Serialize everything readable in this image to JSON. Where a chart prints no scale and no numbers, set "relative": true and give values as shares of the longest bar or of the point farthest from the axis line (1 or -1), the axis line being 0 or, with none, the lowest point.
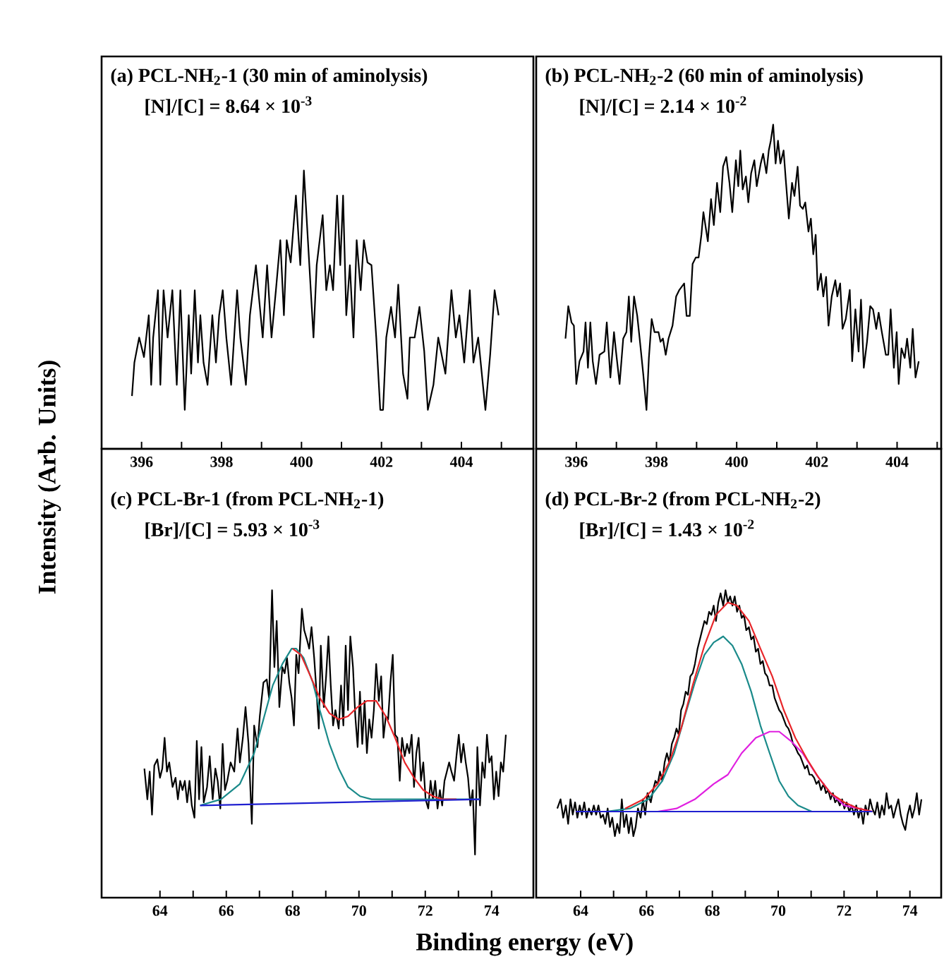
{
  "chart_data": [
    {
      "type": "line",
      "relative": true,
      "title": "(a) PCL-NH$_{2}$-1 (30 min of aminolysis)",
      "subtitle": "[N]/[C] = 8.64 × 10$^{-3}$",
      "ylabel": "Intensity (Arb. Units)",
      "xlim": [
        395.0,
        405.8
      ],
      "xticks": [
        396,
        {
          "value": 397,
          "label": null
        },
        398,
        {
          "value": 399,
          "label": null
        },
        400,
        {
          "value": 401,
          "label": null
        },
        402,
        {
          "value": 403,
          "label": null
        },
        404,
        {
          "value": 405,
          "label": null
        }
      ],
      "tick_labels": "x",
      "series": [
        {
          "color": "#000000",
          "x": [
            395.76,
            395.82,
            395.94,
            396.06,
            396.18,
            396.24,
            396.29,
            396.41,
            396.47,
            396.55,
            396.65,
            396.77,
            396.88,
            396.97,
            397.08,
            397.18,
            397.24,
            397.33,
            397.41,
            397.47,
            397.55,
            397.65,
            397.77,
            397.86,
            397.94,
            398.03,
            398.12,
            398.24,
            398.39,
            398.47,
            398.61,
            398.71,
            398.86,
            399.03,
            399.14,
            399.25,
            399.36,
            399.47,
            399.56,
            399.63,
            399.73,
            399.86,
            399.97,
            400.06,
            400.16,
            400.3,
            400.38,
            400.53,
            400.62,
            400.71,
            400.79,
            400.89,
            400.97,
            401.04,
            401.12,
            401.21,
            401.3,
            401.38,
            401.48,
            401.56,
            401.65,
            401.75,
            401.87,
            401.97,
            402.04,
            402.12,
            402.24,
            402.34,
            402.42,
            402.54,
            402.65,
            402.71,
            402.83,
            402.95,
            403.07,
            403.16,
            403.3,
            403.42,
            403.6,
            403.75,
            403.86,
            403.95,
            404.07,
            404.21,
            404.3,
            404.42,
            404.6,
            404.72,
            404.83,
            404.93
          ],
          "values": [
            0.19,
            0.31,
            0.4,
            0.33,
            0.48,
            0.23,
            0.4,
            0.57,
            0.23,
            0.57,
            0.4,
            0.57,
            0.23,
            0.57,
            0.14,
            0.48,
            0.27,
            0.57,
            0.31,
            0.48,
            0.31,
            0.23,
            0.48,
            0.31,
            0.48,
            0.57,
            0.4,
            0.23,
            0.57,
            0.4,
            0.23,
            0.48,
            0.66,
            0.4,
            0.66,
            0.4,
            0.57,
            0.75,
            0.48,
            0.75,
            0.67,
            0.91,
            0.66,
            1.0,
            0.75,
            0.4,
            0.66,
            0.84,
            0.57,
            0.66,
            0.57,
            0.91,
            0.66,
            0.91,
            0.48,
            0.66,
            0.4,
            0.75,
            0.57,
            0.75,
            0.67,
            0.66,
            0.4,
            0.14,
            0.14,
            0.4,
            0.51,
            0.4,
            0.59,
            0.27,
            0.18,
            0.4,
            0.4,
            0.51,
            0.35,
            0.14,
            0.23,
            0.4,
            0.27,
            0.57,
            0.4,
            0.48,
            0.31,
            0.57,
            0.31,
            0.4,
            0.14,
            0.34,
            0.57,
            0.48
          ]
        }
      ]
    },
    {
      "type": "line",
      "relative": true,
      "title": "(b) PCL-NH$_{2}$-2 (60 min of aminolysis)",
      "subtitle": "[N]/[C] = 2.14 × 10$^{-2}$",
      "xlim": [
        395.0,
        405.1
      ],
      "xticks": [
        396,
        {
          "value": 397,
          "label": null
        },
        398,
        {
          "value": 399,
          "label": null
        },
        400,
        {
          "value": 401,
          "label": null
        },
        402,
        {
          "value": 403,
          "label": null
        },
        404,
        {
          "value": 405,
          "label": null
        }
      ],
      "tick_labels": "x",
      "series": [
        {
          "color": "#000000",
          "x": [
            395.73,
            395.8,
            395.88,
            395.94,
            396.0,
            396.08,
            396.18,
            396.23,
            396.29,
            396.35,
            396.41,
            396.49,
            396.58,
            396.7,
            396.76,
            396.85,
            396.94,
            396.99,
            397.08,
            397.17,
            397.25,
            397.31,
            397.37,
            397.44,
            397.52,
            397.58,
            397.67,
            397.75,
            397.81,
            397.88,
            397.95,
            398.05,
            398.1,
            398.16,
            398.23,
            398.3,
            398.4,
            398.49,
            398.57,
            398.69,
            398.75,
            398.83,
            398.9,
            398.98,
            399.05,
            399.12,
            399.17,
            399.28,
            399.36,
            399.43,
            399.51,
            399.59,
            399.66,
            399.74,
            399.82,
            399.89,
            399.98,
            400.04,
            400.09,
            400.15,
            400.23,
            400.29,
            400.36,
            400.44,
            400.5,
            400.6,
            400.66,
            400.74,
            400.8,
            400.85,
            400.91,
            400.97,
            401.03,
            401.09,
            401.17,
            401.23,
            401.3,
            401.38,
            401.44,
            401.52,
            401.58,
            401.65,
            401.71,
            401.79,
            401.85,
            401.91,
            401.97,
            402.02,
            402.1,
            402.16,
            402.23,
            402.29,
            402.37,
            402.46,
            402.51,
            402.58,
            402.64,
            402.72,
            402.82,
            402.88,
            402.96,
            403.04,
            403.1,
            403.17,
            403.25,
            403.33,
            403.4,
            403.48,
            403.54,
            403.62,
            403.72,
            403.78,
            403.84,
            403.92,
            403.99,
            404.04,
            404.11,
            404.19,
            404.25,
            404.33,
            404.39,
            404.46,
            404.54
          ],
          "values": [
            0.34,
            0.44,
            0.39,
            0.38,
            0.2,
            0.27,
            0.3,
            0.39,
            0.25,
            0.39,
            0.27,
            0.2,
            0.29,
            0.3,
            0.39,
            0.22,
            0.36,
            0.3,
            0.2,
            0.34,
            0.36,
            0.47,
            0.33,
            0.47,
            0.41,
            0.34,
            0.23,
            0.12,
            0.28,
            0.4,
            0.36,
            0.36,
            0.33,
            0.34,
            0.29,
            0.34,
            0.38,
            0.47,
            0.49,
            0.51,
            0.41,
            0.41,
            0.57,
            0.59,
            0.59,
            0.66,
            0.73,
            0.64,
            0.77,
            0.69,
            0.82,
            0.73,
            0.87,
            0.9,
            0.82,
            0.73,
            0.89,
            0.81,
            0.92,
            0.8,
            0.84,
            0.76,
            0.85,
            0.89,
            0.81,
            0.88,
            0.91,
            0.85,
            0.92,
            0.95,
            1.0,
            0.88,
            0.95,
            0.88,
            0.92,
            0.82,
            0.71,
            0.82,
            0.78,
            0.87,
            0.75,
            0.74,
            0.76,
            0.67,
            0.71,
            0.6,
            0.66,
            0.49,
            0.54,
            0.47,
            0.53,
            0.38,
            0.47,
            0.52,
            0.47,
            0.51,
            0.37,
            0.4,
            0.49,
            0.27,
            0.43,
            0.3,
            0.46,
            0.25,
            0.33,
            0.44,
            0.43,
            0.37,
            0.42,
            0.36,
            0.29,
            0.29,
            0.43,
            0.25,
            0.36,
            0.2,
            0.31,
            0.28,
            0.34,
            0.25,
            0.37,
            0.22,
            0.27
          ]
        }
      ]
    },
    {
      "type": "line",
      "relative": true,
      "title": "(c) PCL-Br-1 (from PCL-NH$_{2}$-1)",
      "subtitle": "[Br]/[C] = 5.93 × 10$^{-3}$",
      "xlabel": "Binding energy (eV)",
      "xlim": [
        62.24,
        75.26
      ],
      "xticks": [
        64,
        {
          "value": 65,
          "label": null
        },
        66,
        {
          "value": 67,
          "label": null
        },
        68,
        {
          "value": 69,
          "label": null
        },
        70,
        {
          "value": 71,
          "label": null
        },
        72,
        {
          "value": 73,
          "label": null
        },
        74
      ],
      "tick_labels": "x",
      "series": [
        {
          "color": "#000000",
          "x": [
            63.53,
            63.62,
            63.69,
            63.76,
            63.83,
            63.92,
            64.0,
            64.07,
            64.14,
            64.21,
            64.28,
            64.38,
            64.47,
            64.54,
            64.61,
            64.68,
            64.75,
            64.82,
            64.89,
            64.96,
            65.04,
            65.11,
            65.18,
            65.25,
            65.32,
            65.42,
            65.5,
            65.59,
            65.67,
            65.74,
            65.82,
            65.89,
            65.96,
            66.03,
            66.13,
            66.24,
            66.34,
            66.41,
            66.5,
            66.58,
            66.67,
            66.77,
            66.84,
            66.94,
            67.01,
            67.12,
            67.22,
            67.29,
            67.38,
            67.45,
            67.52,
            67.6,
            67.69,
            67.76,
            67.83,
            67.9,
            67.97,
            68.04,
            68.11,
            68.18,
            68.28,
            68.35,
            68.43,
            68.5,
            68.57,
            68.65,
            68.72,
            68.79,
            68.85,
            68.94,
            69.01,
            69.08,
            69.15,
            69.22,
            69.29,
            69.39,
            69.46,
            69.53,
            69.6,
            69.67,
            69.74,
            69.82,
            69.89,
            69.96,
            70.03,
            70.1,
            70.17,
            70.24,
            70.31,
            70.38,
            70.45,
            70.52,
            70.6,
            70.67,
            70.74,
            70.81,
            70.88,
            70.95,
            71.02,
            71.09,
            71.16,
            71.23,
            71.3,
            71.38,
            71.45,
            71.52,
            71.59,
            71.66,
            71.73,
            71.8,
            71.87,
            71.94,
            72.01,
            72.09,
            72.16,
            72.23,
            72.3,
            72.37,
            72.44,
            72.51,
            72.58,
            72.65,
            72.72,
            72.79,
            72.87,
            72.94,
            73.01,
            73.08,
            73.15,
            73.22,
            73.29,
            73.36,
            73.43,
            73.5,
            73.57,
            73.65,
            73.72,
            73.79,
            73.86,
            73.93,
            74.0,
            74.07,
            74.14,
            74.21,
            74.28,
            74.35,
            74.43
          ],
          "values": [
            0.42,
            0.32,
            0.41,
            0.27,
            0.43,
            0.45,
            0.39,
            0.42,
            0.52,
            0.41,
            0.44,
            0.36,
            0.39,
            0.32,
            0.38,
            0.35,
            0.38,
            0.31,
            0.38,
            0.3,
            0.26,
            0.51,
            0.32,
            0.49,
            0.31,
            0.36,
            0.46,
            0.32,
            0.42,
            0.38,
            0.29,
            0.5,
            0.35,
            0.38,
            0.44,
            0.41,
            0.55,
            0.44,
            0.52,
            0.62,
            0.5,
            0.24,
            0.56,
            0.49,
            0.59,
            0.7,
            0.71,
            0.65,
            1.0,
            0.75,
            0.9,
            0.62,
            0.75,
            0.73,
            0.78,
            0.7,
            0.65,
            0.56,
            0.79,
            0.73,
            0.94,
            0.87,
            0.84,
            0.81,
            0.88,
            0.78,
            0.67,
            0.55,
            0.82,
            0.62,
            0.72,
            0.85,
            0.69,
            0.56,
            0.61,
            0.55,
            0.69,
            0.56,
            0.82,
            0.61,
            0.85,
            0.75,
            0.59,
            0.49,
            0.67,
            0.5,
            0.64,
            0.47,
            0.58,
            0.52,
            0.61,
            0.76,
            0.64,
            0.72,
            0.52,
            0.59,
            0.58,
            0.7,
            0.79,
            0.53,
            0.52,
            0.38,
            0.52,
            0.46,
            0.5,
            0.47,
            0.53,
            0.36,
            0.47,
            0.52,
            0.38,
            0.44,
            0.32,
            0.29,
            0.38,
            0.32,
            0.38,
            0.29,
            0.35,
            0.3,
            0.38,
            0.41,
            0.44,
            0.41,
            0.38,
            0.46,
            0.53,
            0.44,
            0.5,
            0.44,
            0.39,
            0.3,
            0.35,
            0.14,
            0.49,
            0.3,
            0.44,
            0.39,
            0.53,
            0.44,
            0.46,
            0.32,
            0.41,
            0.33,
            0.44,
            0.41,
            0.53
          ]
        },
        {
          "color": "#1a8a8a",
          "x": [
            65.21,
            65.84,
            66.41,
            66.84,
            67.12,
            67.4,
            67.69,
            67.97,
            68.11,
            68.33,
            68.61,
            68.82,
            69.11,
            69.39,
            69.67,
            70.03,
            70.38,
            70.95,
            72.09,
            73.65
          ],
          "values": [
            0.3,
            0.32,
            0.37,
            0.47,
            0.58,
            0.69,
            0.76,
            0.81,
            0.81,
            0.78,
            0.7,
            0.61,
            0.5,
            0.42,
            0.36,
            0.33,
            0.32,
            0.32,
            0.32,
            0.32
          ]
        },
        {
          "color": "#e8262a",
          "x": [
            68.0,
            68.25,
            68.54,
            68.82,
            69.11,
            69.39,
            69.67,
            69.96,
            70.24,
            70.52,
            70.81,
            71.09,
            71.38,
            71.66,
            71.94,
            72.23,
            72.51,
            72.94
          ],
          "values": [
            0.81,
            0.79,
            0.72,
            0.65,
            0.6,
            0.58,
            0.59,
            0.62,
            0.64,
            0.64,
            0.59,
            0.52,
            0.44,
            0.39,
            0.35,
            0.33,
            0.32,
            0.32
          ]
        },
        {
          "color": "#2020d0",
          "x": [
            65.21,
            73.65
          ],
          "values": [
            0.3,
            0.32
          ]
        }
      ]
    },
    {
      "type": "line",
      "relative": true,
      "title": "(d) PCL-Br-2 (from PCL-NH$_{2}$-2)",
      "subtitle": "[Br]/[C] = 1.43 × 10$^{-2}$",
      "xlim": [
        62.65,
        74.95
      ],
      "xticks": [
        64,
        {
          "value": 65,
          "label": null
        },
        66,
        {
          "value": 67,
          "label": null
        },
        68,
        {
          "value": 69,
          "label": null
        },
        70,
        {
          "value": 71,
          "label": null
        },
        72,
        {
          "value": 73,
          "label": null
        },
        74
      ],
      "tick_labels": "x",
      "series": [
        {
          "color": "#000000",
          "x": [
            63.29,
            63.39,
            63.47,
            63.55,
            63.62,
            63.69,
            63.76,
            63.83,
            63.9,
            63.97,
            64.04,
            64.11,
            64.18,
            64.25,
            64.33,
            64.4,
            64.47,
            64.54,
            64.61,
            64.68,
            64.75,
            64.82,
            64.89,
            64.96,
            65.04,
            65.11,
            65.18,
            65.25,
            65.32,
            65.39,
            65.46,
            65.53,
            65.6,
            65.67,
            65.74,
            65.82,
            65.89,
            65.96,
            66.03,
            66.13,
            66.2,
            66.27,
            66.34,
            66.41,
            66.48,
            66.55,
            66.62,
            66.69,
            66.77,
            66.84,
            66.91,
            66.98,
            67.05,
            67.12,
            67.19,
            67.26,
            67.33,
            67.4,
            67.47,
            67.55,
            67.62,
            67.69,
            67.76,
            67.83,
            67.9,
            67.97,
            68.04,
            68.11,
            68.18,
            68.25,
            68.33,
            68.4,
            68.47,
            68.54,
            68.61,
            68.68,
            68.75,
            68.82,
            68.89,
            68.96,
            69.03,
            69.11,
            69.18,
            69.25,
            69.32,
            69.39,
            69.46,
            69.53,
            69.6,
            69.67,
            69.74,
            69.82,
            69.89,
            69.96,
            70.03,
            70.1,
            70.17,
            70.24,
            70.31,
            70.38,
            70.45,
            70.52,
            70.6,
            70.67,
            70.74,
            70.81,
            70.88,
            70.95,
            71.02,
            71.09,
            71.16,
            71.23,
            71.3,
            71.38,
            71.45,
            71.52,
            71.59,
            71.66,
            71.73,
            71.8,
            71.87,
            71.94,
            72.01,
            72.08,
            72.16,
            72.23,
            72.3,
            72.37,
            72.44,
            72.51,
            72.58,
            72.65,
            72.72,
            72.79,
            72.86,
            72.94,
            73.01,
            73.08,
            73.15,
            73.22,
            73.29,
            73.36,
            73.43,
            73.5,
            73.57,
            73.65,
            73.72,
            73.79,
            73.86,
            73.93,
            74.0,
            74.07,
            74.14,
            74.21,
            74.28,
            74.35
          ],
          "values": [
            0.29,
            0.32,
            0.26,
            0.3,
            0.24,
            0.32,
            0.27,
            0.31,
            0.26,
            0.3,
            0.27,
            0.31,
            0.26,
            0.29,
            0.27,
            0.3,
            0.27,
            0.3,
            0.26,
            0.27,
            0.24,
            0.29,
            0.23,
            0.26,
            0.2,
            0.24,
            0.21,
            0.32,
            0.23,
            0.27,
            0.21,
            0.26,
            0.2,
            0.23,
            0.29,
            0.26,
            0.32,
            0.27,
            0.34,
            0.31,
            0.35,
            0.38,
            0.37,
            0.41,
            0.38,
            0.44,
            0.47,
            0.44,
            0.5,
            0.52,
            0.55,
            0.53,
            0.61,
            0.63,
            0.67,
            0.66,
            0.72,
            0.73,
            0.76,
            0.81,
            0.84,
            0.87,
            0.9,
            0.89,
            0.93,
            0.92,
            0.95,
            0.9,
            0.96,
            0.99,
            0.95,
            1.0,
            0.96,
            0.98,
            0.95,
            0.98,
            0.93,
            0.95,
            0.91,
            0.92,
            0.87,
            0.88,
            0.84,
            0.85,
            0.8,
            0.81,
            0.76,
            0.77,
            0.73,
            0.72,
            0.69,
            0.69,
            0.65,
            0.63,
            0.61,
            0.6,
            0.58,
            0.56,
            0.55,
            0.53,
            0.5,
            0.49,
            0.47,
            0.46,
            0.44,
            0.42,
            0.43,
            0.4,
            0.4,
            0.39,
            0.37,
            0.38,
            0.35,
            0.37,
            0.34,
            0.35,
            0.32,
            0.34,
            0.31,
            0.32,
            0.3,
            0.32,
            0.29,
            0.31,
            0.28,
            0.3,
            0.27,
            0.3,
            0.26,
            0.29,
            0.24,
            0.3,
            0.27,
            0.32,
            0.29,
            0.27,
            0.31,
            0.26,
            0.3,
            0.27,
            0.34,
            0.29,
            0.3,
            0.26,
            0.29,
            0.32,
            0.27,
            0.24,
            0.22,
            0.27,
            0.3,
            0.26,
            0.29,
            0.34,
            0.27,
            0.32
          ]
        },
        {
          "color": "#1a8a8a",
          "x": [
            63.86,
            64.78,
            65.49,
            66.06,
            66.48,
            66.84,
            67.19,
            67.47,
            67.76,
            68.04,
            68.33,
            68.61,
            68.89,
            69.18,
            69.46,
            69.74,
            70.03,
            70.31,
            70.6,
            71.02,
            71.87,
            72.86
          ],
          "values": [
            0.28,
            0.28,
            0.29,
            0.32,
            0.38,
            0.47,
            0.6,
            0.7,
            0.79,
            0.83,
            0.85,
            0.82,
            0.76,
            0.67,
            0.56,
            0.47,
            0.38,
            0.33,
            0.3,
            0.28,
            0.28,
            0.28
          ]
        },
        {
          "color": "#e020e0",
          "x": [
            63.86,
            65.49,
            66.34,
            66.91,
            67.47,
            68.04,
            68.47,
            68.89,
            69.32,
            69.74,
            70.03,
            70.38,
            70.74,
            71.16,
            71.59,
            72.01,
            72.44,
            72.86
          ],
          "values": [
            0.28,
            0.28,
            0.28,
            0.29,
            0.32,
            0.37,
            0.4,
            0.47,
            0.52,
            0.54,
            0.54,
            0.51,
            0.47,
            0.4,
            0.34,
            0.3,
            0.29,
            0.28
          ]
        },
        {
          "color": "#e8262a",
          "x": [
            65.35,
            65.91,
            66.34,
            66.69,
            67.05,
            67.4,
            67.76,
            68.11,
            68.47,
            68.75,
            69.11,
            69.46,
            69.82,
            70.17,
            70.52,
            70.88,
            71.23,
            71.59,
            72.01,
            72.44,
            72.86
          ],
          "values": [
            0.29,
            0.32,
            0.37,
            0.44,
            0.55,
            0.69,
            0.82,
            0.92,
            0.96,
            0.95,
            0.9,
            0.81,
            0.72,
            0.61,
            0.52,
            0.45,
            0.39,
            0.34,
            0.31,
            0.29,
            0.28
          ]
        },
        {
          "color": "#2020d0",
          "x": [
            63.86,
            72.86
          ],
          "values": [
            0.28,
            0.28
          ]
        }
      ]
    }
  ]
}
